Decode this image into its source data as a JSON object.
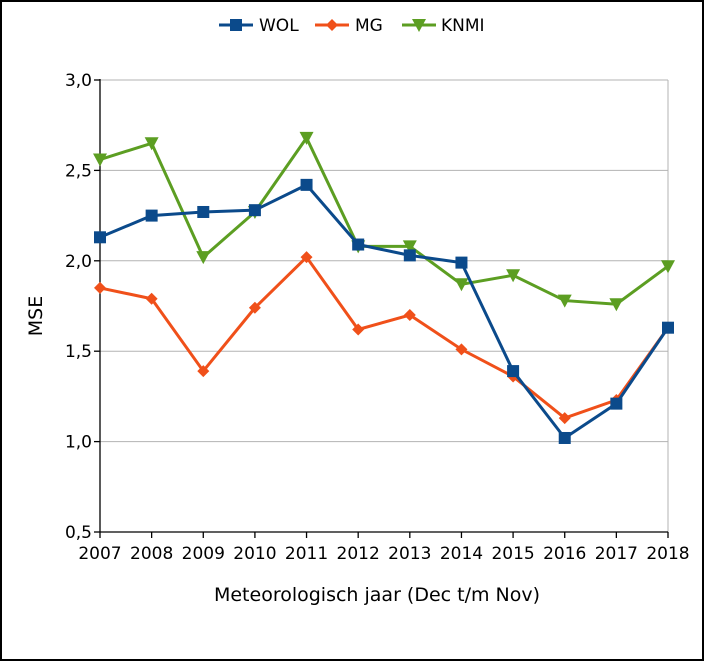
{
  "chart_data": {
    "type": "line",
    "title": "",
    "xlabel": "Meteorologisch jaar (Dec t/m Nov)",
    "ylabel": "MSE",
    "categories": [
      "2007",
      "2008",
      "2009",
      "2010",
      "2011",
      "2012",
      "2013",
      "2014",
      "2015",
      "2016",
      "2017",
      "2018"
    ],
    "ylim": [
      0.5,
      3.0
    ],
    "yticks": [
      0.5,
      1.0,
      1.5,
      2.0,
      2.5,
      3.0
    ],
    "ytick_labels": [
      "0,5",
      "1,0",
      "1,5",
      "2,0",
      "2,5",
      "3,0"
    ],
    "grid": "horizontal",
    "legend_position": "top",
    "series": [
      {
        "name": "WOL",
        "color": "#0b4a8b",
        "marker": "square",
        "values": [
          2.13,
          2.25,
          2.27,
          2.28,
          2.42,
          2.09,
          2.03,
          1.99,
          1.39,
          1.02,
          1.21,
          1.63
        ]
      },
      {
        "name": "MG",
        "color": "#f0501a",
        "marker": "diamond",
        "values": [
          1.85,
          1.79,
          1.39,
          1.74,
          2.02,
          1.62,
          1.7,
          1.51,
          1.36,
          1.13,
          1.23,
          1.63
        ]
      },
      {
        "name": "KNMI",
        "color": "#5c9e22",
        "marker": "triangle-down",
        "values": [
          2.56,
          2.65,
          2.02,
          2.27,
          2.68,
          2.08,
          2.08,
          1.87,
          1.92,
          1.78,
          1.76,
          1.97
        ]
      }
    ]
  }
}
